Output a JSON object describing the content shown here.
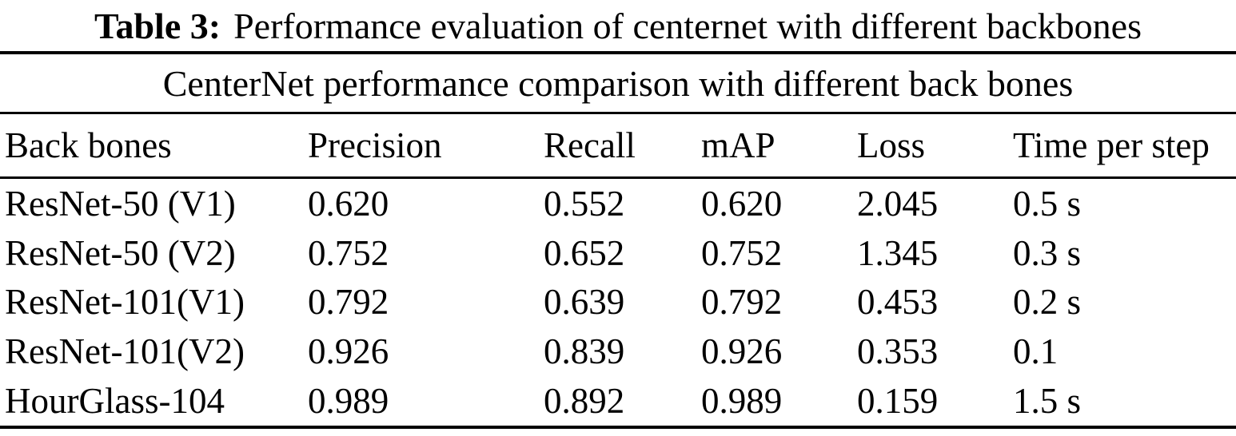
{
  "title": {
    "label": "Table 3:",
    "text": "Performance evaluation of centernet with different backbones"
  },
  "caption": "CenterNet performance comparison with different back bones",
  "table": {
    "columns": [
      "Back bones",
      "Precision",
      "Recall",
      "mAP",
      "Loss",
      "Time per step"
    ],
    "rows": [
      [
        "ResNet-50 (V1)",
        "0.620",
        "0.552",
        "0.620",
        "2.045",
        "0.5 s"
      ],
      [
        "ResNet-50 (V2)",
        "0.752",
        "0.652",
        "0.752",
        "1.345",
        "0.3 s"
      ],
      [
        "ResNet-101(V1)",
        "0.792",
        "0.639",
        "0.792",
        "0.453",
        "0.2 s"
      ],
      [
        "ResNet-101(V2)",
        "0.926",
        "0.839",
        "0.926",
        "0.353",
        "0.1"
      ],
      [
        "HourGlass-104",
        "0.989",
        "0.892",
        "0.989",
        "0.159",
        "1.5 s"
      ]
    ]
  },
  "colors": {
    "background": "#ffffff",
    "text": "#000000",
    "rule": "#000000"
  }
}
